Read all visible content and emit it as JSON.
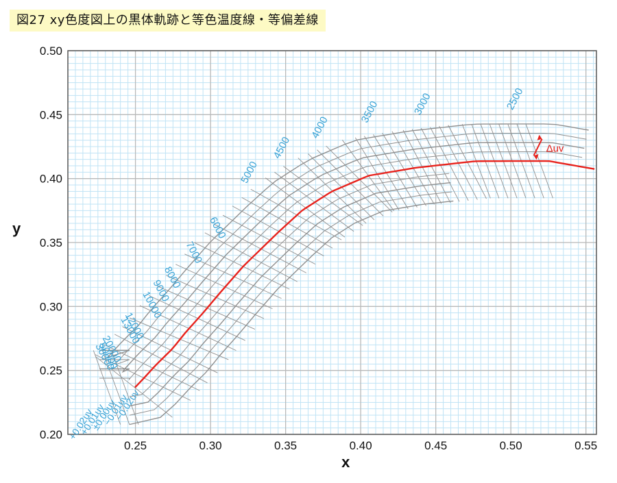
{
  "title": "図27 xy色度図上の黒体軌跡と等色温度線・等偏差線",
  "chart_data": {
    "type": "line",
    "xlabel": "x",
    "ylabel": "y",
    "xlim": [
      0.205,
      0.557
    ],
    "ylim": [
      0.2,
      0.5
    ],
    "x_ticks": [
      "0.25",
      "0.30",
      "0.35",
      "0.40",
      "0.45",
      "0.50",
      "0.55"
    ],
    "x_tick_values": [
      0.25,
      0.3,
      0.35,
      0.4,
      0.45,
      0.5,
      0.55
    ],
    "y_ticks": [
      "0.20",
      "0.25",
      "0.30",
      "0.35",
      "0.40",
      "0.45",
      "0.50"
    ],
    "y_tick_values": [
      0.2,
      0.25,
      0.3,
      0.35,
      0.4,
      0.45,
      0.5
    ],
    "grid": true,
    "planckian_locus": {
      "color": "#e8221c",
      "x": [
        0.2497,
        0.2548,
        0.2635,
        0.2747,
        0.2831,
        0.2952,
        0.3064,
        0.3221,
        0.3457,
        0.3611,
        0.3805,
        0.4053,
        0.4369,
        0.4763,
        0.5,
        0.5254,
        0.557
      ],
      "y": [
        0.2367,
        0.2429,
        0.2541,
        0.267,
        0.2793,
        0.2952,
        0.3108,
        0.3318,
        0.3587,
        0.3752,
        0.3898,
        0.4023,
        0.4085,
        0.4136,
        0.4137,
        0.4137,
        0.4072
      ]
    },
    "isotemperature_lines": [
      {
        "label": "2500",
        "x": 0.505
      },
      {
        "label": "3000",
        "x": 0.448
      },
      {
        "label": "3500",
        "x": 0.415
      },
      {
        "label": "4000",
        "x": 0.391
      },
      {
        "label": "4500",
        "x": 0.371
      },
      {
        "label": "5000",
        "x": 0.354
      },
      {
        "label": "6000",
        "x": 0.33
      },
      {
        "label": "7000",
        "x": 0.316
      },
      {
        "label": "8000",
        "x": 0.302
      },
      {
        "label": "9000",
        "x": 0.294
      },
      {
        "label": "10000",
        "x": 0.287
      },
      {
        "label": "12000",
        "x": 0.276
      },
      {
        "label": "13000",
        "x": 0.271
      },
      {
        "label": "20000",
        "x": 0.26
      },
      {
        "label": "30000",
        "x": 0.255
      },
      {
        "label": "50000",
        "x": 0.25
      }
    ],
    "duv_lines": [
      {
        "label": "+0.02uv",
        "offset": 0.02
      },
      {
        "label": "+0.01uv",
        "offset": 0.01
      },
      {
        "label": "±0.00uv",
        "offset": 0.0
      },
      {
        "label": "−0.01uv",
        "offset": -0.01
      },
      {
        "label": "−0.02uv",
        "offset": -0.02
      }
    ],
    "annotation": "Δuv",
    "colors": {
      "grid_minor": "#bfe3f5",
      "grid_major": "#b9b9b9",
      "isolines": "#8f8f8f",
      "label_blue": "#3aa3d6",
      "locus_red": "#e8221c"
    }
  }
}
